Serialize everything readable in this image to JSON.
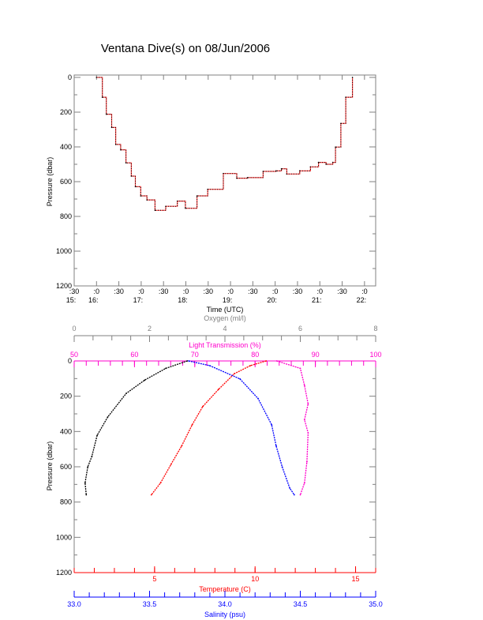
{
  "title": "Ventana Dive(s) on 08/Jun/2006",
  "colors": {
    "axis": "#808080",
    "oxygen": "#000000",
    "temperature": "#ff0000",
    "salinity": "#0000ff",
    "light": "#ff00cc",
    "trace": "#ff4040"
  },
  "chart_data": [
    {
      "type": "line",
      "title": "Ventana Dive(s) on 08/Jun/2006",
      "xlabel": "Time (UTC)",
      "ylabel": "Pressure (dbar)",
      "xlim": [
        15.5,
        22.25
      ],
      "ylim": [
        1200,
        0
      ],
      "xticks": [
        {
          "v": 15.5,
          "top": ":30",
          "bot": "15:"
        },
        {
          "v": 16,
          "top": ":0",
          "bot": "16:"
        },
        {
          "v": 16.5,
          "top": ":30",
          "bot": ""
        },
        {
          "v": 17,
          "top": ":0",
          "bot": "17:"
        },
        {
          "v": 17.5,
          "top": ":30",
          "bot": ""
        },
        {
          "v": 18,
          "top": ":0",
          "bot": "18:"
        },
        {
          "v": 18.5,
          "top": ":30",
          "bot": ""
        },
        {
          "v": 19,
          "top": ":0",
          "bot": "19:"
        },
        {
          "v": 19.5,
          "top": ":30",
          "bot": ""
        },
        {
          "v": 20,
          "top": ":0",
          "bot": "20:"
        },
        {
          "v": 20.5,
          "top": ":30",
          "bot": ""
        },
        {
          "v": 21,
          "top": ":0",
          "bot": "21:"
        },
        {
          "v": 21.5,
          "top": ":30",
          "bot": ""
        },
        {
          "v": 22,
          "top": ":0",
          "bot": "22:"
        }
      ],
      "yticks": [
        "0",
        "200",
        "400",
        "600",
        "800",
        "1000",
        "1200"
      ],
      "series": [
        {
          "name": "Pressure",
          "x": [
            16.0,
            16.13,
            16.22,
            16.34,
            16.43,
            16.54,
            16.66,
            16.78,
            16.87,
            16.99,
            17.13,
            17.31,
            17.55,
            17.81,
            17.99,
            18.25,
            18.49,
            18.84,
            19.14,
            19.38,
            19.73,
            20.02,
            20.14,
            20.26,
            20.55,
            20.79,
            20.97,
            21.14,
            21.29,
            21.35,
            21.47,
            21.58,
            21.73
          ],
          "y": [
            0,
            114,
            212,
            288,
            386,
            417,
            492,
            568,
            629,
            682,
            705,
            765,
            742,
            712,
            753,
            682,
            644,
            553,
            580,
            577,
            541,
            538,
            526,
            556,
            538,
            515,
            489,
            500,
            489,
            401,
            265,
            114,
            0
          ]
        }
      ]
    },
    {
      "type": "line",
      "ylabel": "Pressure (dbar)",
      "ylim": [
        1200,
        0
      ],
      "yticks": [
        "0",
        "200",
        "400",
        "600",
        "800",
        "1000",
        "1200"
      ],
      "axes": {
        "oxygen": {
          "label": "Oxygen (ml/l)",
          "range": [
            0,
            8
          ],
          "ticks": [
            "0",
            "2",
            "4",
            "6",
            "8"
          ]
        },
        "light": {
          "label": "Light Transmission (%)",
          "range": [
            50,
            100
          ],
          "ticks": [
            "50",
            "60",
            "70",
            "80",
            "90",
            "100"
          ]
        },
        "temperature": {
          "label": "Temperature (C)",
          "range": [
            1,
            16
          ],
          "ticks": [
            "5",
            "10",
            "15"
          ]
        },
        "salinity": {
          "label": "Salinity (psu)",
          "range": [
            33,
            35
          ],
          "ticks": [
            "33.0",
            "33.5",
            "34.0",
            "34.5",
            "35.0"
          ]
        }
      },
      "series": [
        {
          "name": "Oxygen",
          "axis": "oxygen",
          "x": [
            3.0,
            2.43,
            1.87,
            1.38,
            0.89,
            0.61,
            0.47,
            0.36,
            0.29,
            0.32
          ],
          "y": [
            0,
            42,
            109,
            184,
            318,
            422,
            541,
            601,
            692,
            759
          ]
        },
        {
          "name": "Temperature",
          "axis": "temperature",
          "x": [
            10.55,
            9.76,
            8.97,
            8.18,
            7.4,
            6.87,
            6.35,
            5.82,
            5.3,
            4.84
          ],
          "y": [
            0,
            27,
            72,
            161,
            258,
            362,
            482,
            586,
            691,
            759
          ]
        },
        {
          "name": "Salinity",
          "axis": "salinity",
          "x": [
            33.76,
            33.9,
            34.1,
            34.22,
            34.31,
            34.34,
            34.38,
            34.43,
            34.46
          ],
          "y": [
            0,
            27,
            102,
            213,
            362,
            482,
            601,
            721,
            759
          ]
        },
        {
          "name": "Light Transmission",
          "axis": "light",
          "x": [
            83.6,
            87.5,
            88.2,
            88.8,
            88.2,
            88.8,
            88.6,
            88.2,
            87.5
          ],
          "y": [
            0,
            42,
            139,
            244,
            333,
            408,
            572,
            692,
            759
          ]
        }
      ]
    }
  ]
}
